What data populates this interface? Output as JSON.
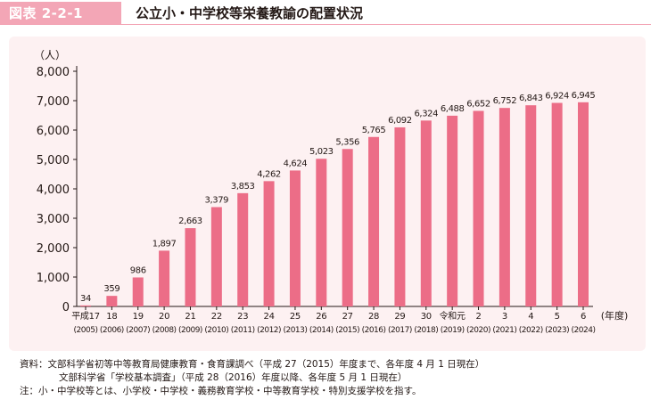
{
  "figure": {
    "tag": "図表 2-2-1",
    "title": "公立小・中学校等栄養教諭の配置状況"
  },
  "chart_data": {
    "type": "bar",
    "y_unit_label": "（人）",
    "x_unit_label": "(年度)",
    "ylim": [
      0,
      8000
    ],
    "yticks": [
      "0",
      "1,000",
      "2,000",
      "3,000",
      "4,000",
      "5,000",
      "6,000",
      "7,000",
      "8,000"
    ],
    "grid": false,
    "bar_color": "#ec6d87",
    "categories": [
      {
        "era": "平成17",
        "year": "(2005)"
      },
      {
        "era": "18",
        "year": "(2006)"
      },
      {
        "era": "19",
        "year": "(2007)"
      },
      {
        "era": "20",
        "year": "(2008)"
      },
      {
        "era": "21",
        "year": "(2009)"
      },
      {
        "era": "22",
        "year": "(2010)"
      },
      {
        "era": "23",
        "year": "(2011)"
      },
      {
        "era": "24",
        "year": "(2012)"
      },
      {
        "era": "25",
        "year": "(2013)"
      },
      {
        "era": "26",
        "year": "(2014)"
      },
      {
        "era": "27",
        "year": "(2015)"
      },
      {
        "era": "28",
        "year": "(2016)"
      },
      {
        "era": "29",
        "year": "(2017)"
      },
      {
        "era": "30",
        "year": "(2018)"
      },
      {
        "era": "令和元",
        "year": "(2019)"
      },
      {
        "era": "2",
        "year": "(2020)"
      },
      {
        "era": "3",
        "year": "(2021)"
      },
      {
        "era": "4",
        "year": "(2022)"
      },
      {
        "era": "5",
        "year": "(2023)"
      },
      {
        "era": "6",
        "year": "(2024)"
      }
    ],
    "values": [
      34,
      359,
      986,
      1897,
      2663,
      3379,
      3853,
      4262,
      4624,
      5023,
      5356,
      5765,
      6092,
      6324,
      6488,
      6652,
      6752,
      6843,
      6924,
      6945
    ],
    "value_labels": [
      "34",
      "359",
      "986",
      "1,897",
      "2,663",
      "3,379",
      "3,853",
      "4,262",
      "4,624",
      "5,023",
      "5,356",
      "5,765",
      "6,092",
      "6,324",
      "6,488",
      "6,652",
      "6,752",
      "6,843",
      "6,924",
      "6,945"
    ]
  },
  "notes": {
    "source_line1": "資料：文部科学省初等中等教育局健康教育・食育課調べ（平成 27（2015）年度まで、各年度 4 月 1 日現在）",
    "source_line2": "文部科学省「学校基本調査」（平成 28（2016）年度以降、各年度 5 月 1 日現在）",
    "note_line": "注：小・中学校等とは、小学校・中学校・義務教育学校・中等教育学校・特別支援学校を指す。"
  }
}
